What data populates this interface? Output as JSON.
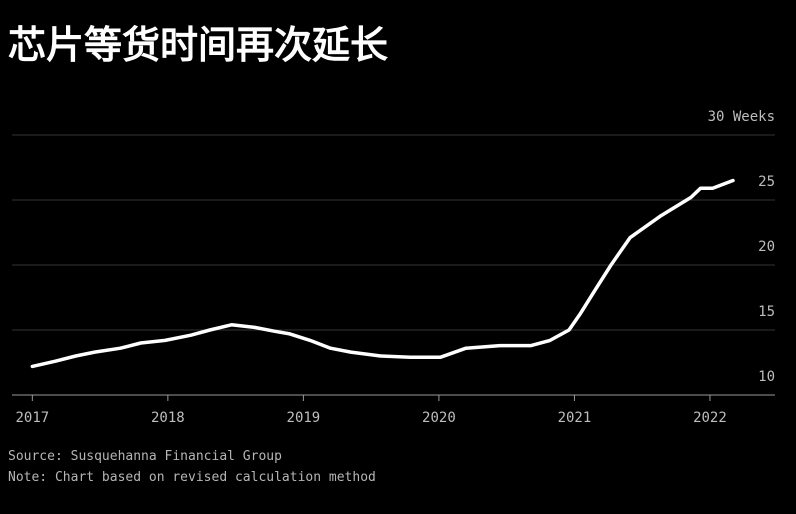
{
  "chart_data": {
    "type": "line",
    "title": "芯片等货时间再次延长",
    "source": "Source: Susquehanna Financial Group",
    "note": "Note: Chart based on revised calculation method",
    "x": [
      2017.0,
      2017.17,
      2017.32,
      2017.46,
      2017.65,
      2017.8,
      2017.98,
      2018.17,
      2018.31,
      2018.47,
      2018.64,
      2018.79,
      2018.9,
      2019.05,
      2019.2,
      2019.35,
      2019.57,
      2019.79,
      2020.01,
      2020.2,
      2020.45,
      2020.68,
      2020.82,
      2020.96,
      2021.04,
      2021.16,
      2021.27,
      2021.41,
      2021.64,
      2021.86,
      2021.93,
      2022.02,
      2022.17
    ],
    "series": [
      {
        "color": "#ffffff",
        "values": [
          12.2,
          12.6,
          13.0,
          13.3,
          13.6,
          14.0,
          14.2,
          14.6,
          15.0,
          15.4,
          15.2,
          14.9,
          14.7,
          14.2,
          13.6,
          13.3,
          13.0,
          12.9,
          12.9,
          13.6,
          13.8,
          13.8,
          14.2,
          15.0,
          16.2,
          18.2,
          20.0,
          22.1,
          23.8,
          25.2,
          25.9,
          25.9,
          26.5
        ]
      }
    ],
    "xlim": [
      2016.85,
      2022.48
    ],
    "xticks": [
      2017,
      2018,
      2019,
      2020,
      2021,
      2022
    ],
    "ylim": [
      10,
      30
    ],
    "yticks": [
      10,
      15,
      20,
      25,
      {
        "value": 30,
        "label": "30 Weeks"
      }
    ],
    "grid": true
  }
}
